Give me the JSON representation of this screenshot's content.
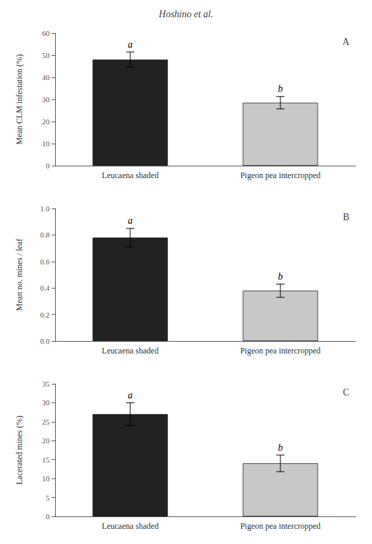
{
  "title": "Hoshino et al.",
  "chart_data": [
    {
      "type": "bar",
      "title": "A",
      "ylabel": "Mean CLM infestation (%)",
      "categories": [
        "Leucaena shaded",
        "Pigeon pea intercropped"
      ],
      "values": [
        48.0,
        28.5
      ],
      "errors": [
        3.5,
        2.8
      ],
      "annotations": [
        "a",
        "b"
      ],
      "colors": [
        "#222222",
        "#c8c8c8"
      ],
      "ylim": [
        0,
        60
      ],
      "yticks": [
        0,
        10,
        20,
        30,
        40,
        50,
        60
      ],
      "grid": false
    },
    {
      "type": "bar",
      "title": "B",
      "ylabel": "Mean no. mines / leaf",
      "categories": [
        "Leucaena shaded",
        "Pigeon pea intercropped"
      ],
      "values": [
        0.78,
        0.38
      ],
      "errors": [
        0.07,
        0.05
      ],
      "annotations": [
        "a",
        "b"
      ],
      "colors": [
        "#222222",
        "#c8c8c8"
      ],
      "ylim": [
        0,
        1.0
      ],
      "yticks": [
        {
          "value": 0,
          "label": "0.0"
        },
        0.2,
        0.4,
        0.6,
        0.8,
        {
          "value": 1.0,
          "label": "1.0"
        }
      ],
      "grid": false
    },
    {
      "type": "bar",
      "title": "C",
      "ylabel": "Lacerated mines (%)",
      "categories": [
        "Leucaena shaded",
        "Pigeon pea intercropped"
      ],
      "values": [
        27.0,
        14.0
      ],
      "errors": [
        3.0,
        2.2
      ],
      "annotations": [
        "a",
        "b"
      ],
      "colors": [
        "#222222",
        "#c8c8c8"
      ],
      "ylim": [
        0,
        35
      ],
      "yticks": [
        0,
        5,
        10,
        15,
        20,
        25,
        30,
        35
      ],
      "grid": false
    }
  ]
}
